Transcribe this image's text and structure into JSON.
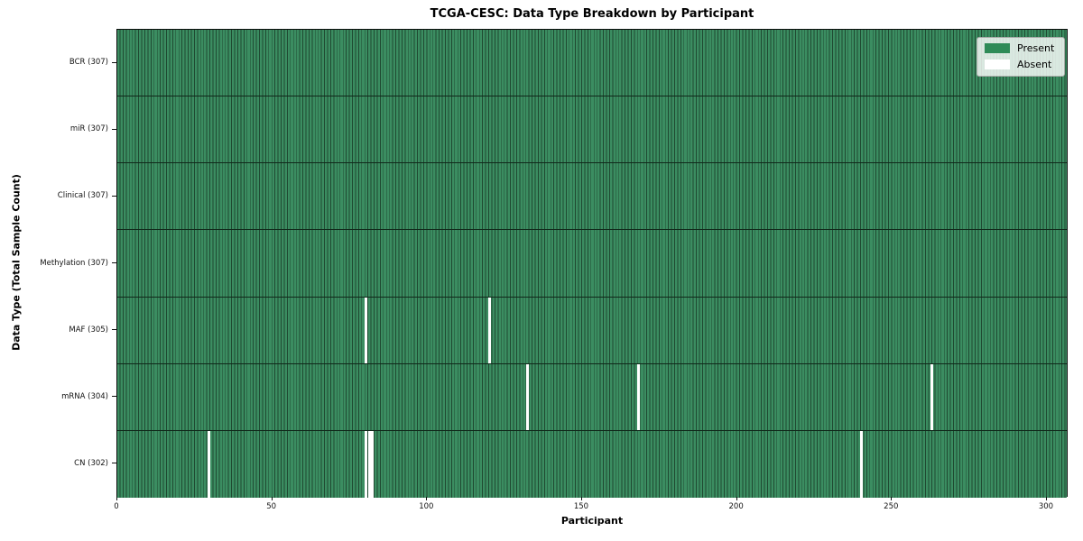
{
  "chart_data": {
    "type": "heatmap",
    "title": "TCGA-CESC: Data Type Breakdown by Participant",
    "xlabel": "Participant",
    "ylabel": "Data Type (Total Sample Count)",
    "n_participants": 307,
    "x_ticks": [
      0,
      50,
      100,
      150,
      200,
      250,
      300
    ],
    "xlim": [
      0,
      307
    ],
    "grid": false,
    "colors": {
      "present": "#2e8b57",
      "present_stripe_light": "#3b8d61",
      "present_stripe_dark": "#1f4931",
      "absent": "#ffffff"
    },
    "legend": {
      "position": "upper right",
      "entries": [
        {
          "label": "Present",
          "color": "#2e8b57"
        },
        {
          "label": "Absent",
          "color": "#ffffff"
        }
      ]
    },
    "rows": [
      {
        "label": "BCR (307)",
        "data_type": "BCR",
        "total_samples": 307,
        "absent_participants": []
      },
      {
        "label": "miR (307)",
        "data_type": "miR",
        "total_samples": 307,
        "absent_participants": []
      },
      {
        "label": "Clinical (307)",
        "data_type": "Clinical",
        "total_samples": 307,
        "absent_participants": []
      },
      {
        "label": "Methylation (307)",
        "data_type": "Methylation",
        "total_samples": 307,
        "absent_participants": []
      },
      {
        "label": "MAF (305)",
        "data_type": "MAF",
        "total_samples": 305,
        "absent_participants": [
          80,
          120
        ]
      },
      {
        "label": "mRNA (304)",
        "data_type": "mRNA",
        "total_samples": 304,
        "absent_participants": [
          132,
          168,
          263
        ]
      },
      {
        "label": "CN (302)",
        "data_type": "CN",
        "total_samples": 302,
        "absent_participants": [
          29,
          80,
          81,
          82,
          240
        ]
      }
    ]
  }
}
